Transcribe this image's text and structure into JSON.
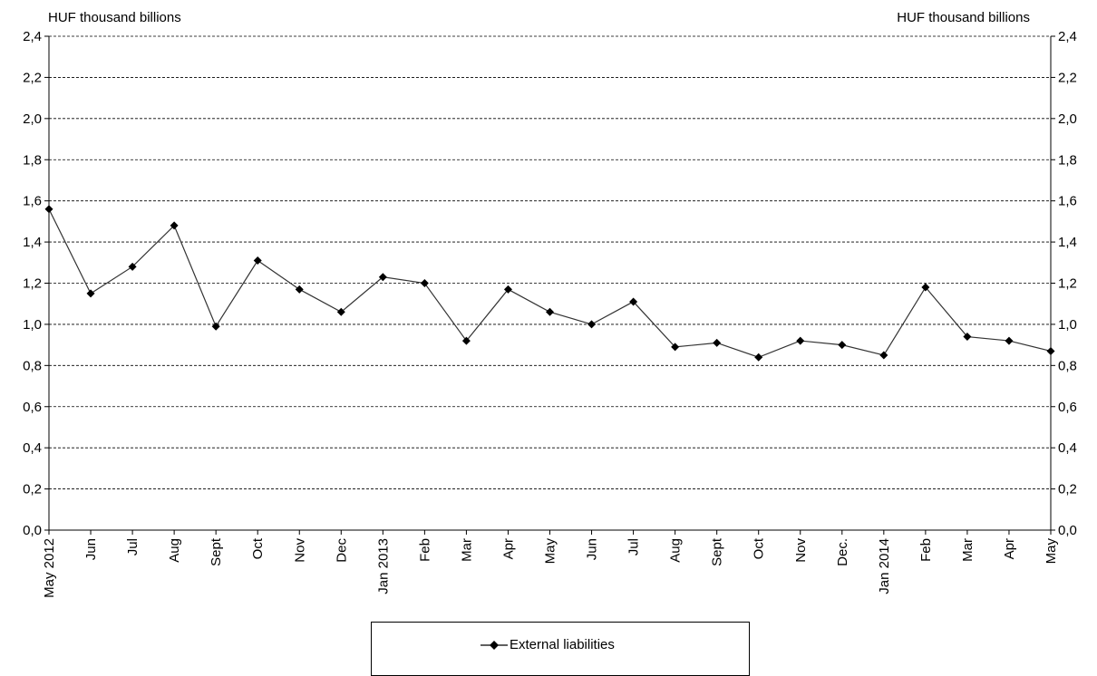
{
  "chart_data": {
    "type": "line",
    "unit_label_left": "HUF thousand  billions",
    "unit_label_right": "HUF thousand  billions",
    "ylim": [
      0,
      2.4
    ],
    "yticks": [
      "0,0",
      "0,2",
      "0,4",
      "0,6",
      "0,8",
      "1,0",
      "1,2",
      "1,4",
      "1,6",
      "1,8",
      "2,0",
      "2,2",
      "2,4"
    ],
    "categories": [
      "May 2012",
      "Jun",
      "Jul",
      "Aug",
      "Sept",
      "Oct",
      "Nov",
      "Dec",
      "Jan 2013",
      "Feb",
      "Mar",
      "Apr",
      "May",
      "Jun",
      "Jul",
      "Aug",
      "Sept",
      "Oct",
      "Nov",
      "Dec.",
      "Jan 2014",
      "Feb",
      "Mar",
      "Apr",
      "May"
    ],
    "series": [
      {
        "name": "External liabilities",
        "color": "#000000",
        "marker": "diamond",
        "values": [
          1.56,
          1.15,
          1.28,
          1.48,
          0.99,
          1.31,
          1.17,
          1.06,
          1.23,
          1.2,
          0.92,
          1.17,
          1.06,
          1.0,
          1.11,
          0.89,
          0.91,
          0.84,
          0.92,
          0.9,
          0.85,
          1.18,
          0.94,
          0.92,
          0.87
        ]
      }
    ],
    "grid": true,
    "legend_position": "bottom"
  }
}
